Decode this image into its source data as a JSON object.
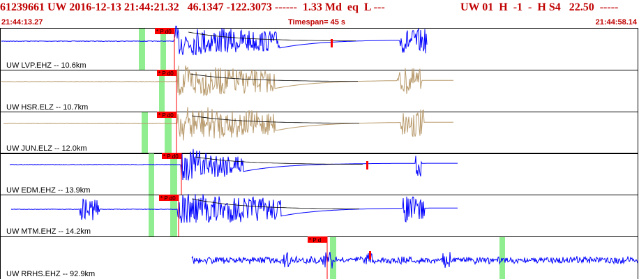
{
  "header": {
    "event_id": "61239661",
    "network": "UW",
    "datetime": "2016-12-13 21:44:21.32",
    "lat": "46.1347",
    "lon": "-122.3073",
    "dashes": "------",
    "magnitude": "1.33 Md",
    "etype": "eq",
    "loc_flag": "L ---",
    "right_info": "UW 01  H  -1  -  H S4   22.50  -----",
    "start_time": "21:44:13.27",
    "timespan": "Timespan=  45 s",
    "end_time": "21:44:58.14"
  },
  "colors": {
    "header_text": "#c00000",
    "trace_vertical": "#0000ff",
    "trace_horizontal": "#b89a6c",
    "pick_marker": "#ff0000",
    "window_band": "#90ee90",
    "coda_line": "#000000",
    "panel_border": "#000000"
  },
  "channels": [
    {
      "label": "UW LVP.EHZ -- 10.6km",
      "pick": "P d0"
    },
    {
      "label": "UW HSR.ELZ -- 10.7km",
      "pick": "P d0"
    },
    {
      "label": "UW JUN.ELZ -- 12.0km",
      "pick": "P d0"
    },
    {
      "label": "UW EDM.EHZ -- 13.9km",
      "pick": "P d0"
    },
    {
      "label": "UW MTM.EHZ -- 14.2km",
      "pick": "P d0"
    },
    {
      "label": "UW RRHS.EHZ -- 92.9km",
      "pick": "P d"
    }
  ]
}
